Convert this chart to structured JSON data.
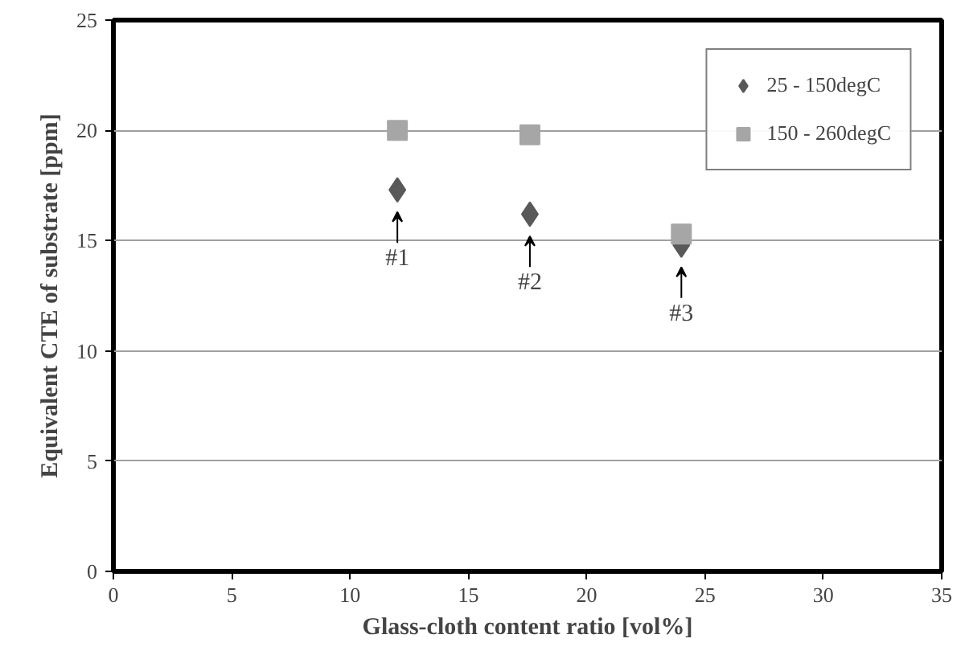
{
  "chart_data": {
    "type": "scatter",
    "xlabel": "Glass-cloth content ratio [vol%]",
    "ylabel": "Equivalent CTE of substrate [ppm]",
    "x": [
      12,
      17.6,
      24
    ],
    "series": [
      {
        "name": "25 - 150degC",
        "color": "#595959",
        "values": [
          17.3,
          16.2,
          14.8
        ],
        "marker": "diamond"
      },
      {
        "name": "150 - 260degC",
        "color": "#a6a6a6",
        "values": [
          20.0,
          19.8,
          15.3
        ],
        "marker": "square"
      }
    ],
    "xlim": [
      0,
      35
    ],
    "xticks": [
      0,
      5,
      10,
      15,
      20,
      25,
      30,
      35
    ],
    "ylim": [
      0,
      25
    ],
    "yticks": [
      0,
      5,
      10,
      15,
      20,
      25
    ],
    "grid": "y",
    "legend": "top right",
    "annotations": [
      {
        "text": "#1",
        "x": 12,
        "y": 17.3
      },
      {
        "text": "#2",
        "x": 17.6,
        "y": 16.2
      },
      {
        "text": "#3",
        "x": 24,
        "y": 14.8
      }
    ]
  }
}
